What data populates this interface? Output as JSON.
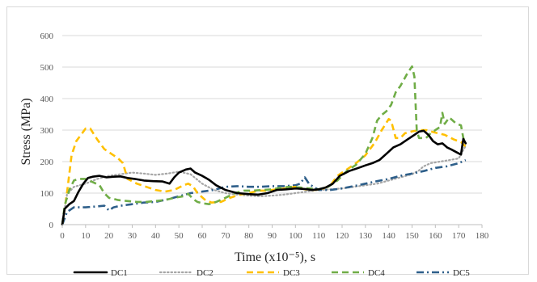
{
  "chart_data": {
    "type": "line",
    "xlabel": "Time (x10⁻⁵), s",
    "ylabel": "Stress (MPa)",
    "xlim": [
      0,
      180
    ],
    "ylim": [
      0,
      600
    ],
    "xticks": [
      "0",
      "10",
      "20",
      "30",
      "40",
      "50",
      "60",
      "70",
      "80",
      "90",
      "100",
      "110",
      "120",
      "130",
      "140",
      "150",
      "160",
      "170",
      "180"
    ],
    "yticks": [
      "0",
      "100",
      "200",
      "300",
      "400",
      "500",
      "600"
    ],
    "grid": "horizontal",
    "legend": "bottom",
    "series": [
      {
        "name": "DC1",
        "color": "#000000",
        "dash": "solid",
        "points": [
          [
            0,
            0
          ],
          [
            1,
            50
          ],
          [
            3,
            65
          ],
          [
            5,
            75
          ],
          [
            7,
            105
          ],
          [
            9,
            130
          ],
          [
            11,
            148
          ],
          [
            13,
            152
          ],
          [
            16,
            155
          ],
          [
            19,
            150
          ],
          [
            22,
            152
          ],
          [
            25,
            153
          ],
          [
            28,
            148
          ],
          [
            31,
            145
          ],
          [
            35,
            140
          ],
          [
            39,
            138
          ],
          [
            43,
            137
          ],
          [
            46,
            130
          ],
          [
            48,
            150
          ],
          [
            50,
            165
          ],
          [
            53,
            175
          ],
          [
            55,
            178
          ],
          [
            57,
            165
          ],
          [
            60,
            155
          ],
          [
            63,
            142
          ],
          [
            66,
            125
          ],
          [
            70,
            110
          ],
          [
            75,
            100
          ],
          [
            80,
            97
          ],
          [
            84,
            95
          ],
          [
            88,
            100
          ],
          [
            92,
            110
          ],
          [
            96,
            112
          ],
          [
            100,
            115
          ],
          [
            104,
            113
          ],
          [
            107,
            110
          ],
          [
            110,
            112
          ],
          [
            113,
            118
          ],
          [
            116,
            130
          ],
          [
            119,
            155
          ],
          [
            123,
            170
          ],
          [
            127,
            180
          ],
          [
            130,
            188
          ],
          [
            133,
            195
          ],
          [
            136,
            205
          ],
          [
            139,
            225
          ],
          [
            142,
            245
          ],
          [
            145,
            255
          ],
          [
            148,
            270
          ],
          [
            151,
            285
          ],
          [
            153,
            295
          ],
          [
            155,
            298
          ],
          [
            157,
            285
          ],
          [
            159,
            265
          ],
          [
            161,
            255
          ],
          [
            163,
            258
          ],
          [
            165,
            245
          ],
          [
            167,
            238
          ],
          [
            169,
            230
          ],
          [
            171,
            222
          ],
          [
            172,
            272
          ],
          [
            173,
            258
          ]
        ]
      },
      {
        "name": "DC2",
        "color": "#a6a6a6",
        "dash": "dotted",
        "points": [
          [
            0,
            0
          ],
          [
            2,
            95
          ],
          [
            5,
            120
          ],
          [
            10,
            130
          ],
          [
            15,
            145
          ],
          [
            20,
            155
          ],
          [
            25,
            160
          ],
          [
            30,
            165
          ],
          [
            35,
            162
          ],
          [
            40,
            158
          ],
          [
            45,
            162
          ],
          [
            50,
            168
          ],
          [
            55,
            160
          ],
          [
            60,
            130
          ],
          [
            65,
            110
          ],
          [
            70,
            100
          ],
          [
            75,
            95
          ],
          [
            80,
            92
          ],
          [
            85,
            90
          ],
          [
            90,
            92
          ],
          [
            95,
            95
          ],
          [
            100,
            100
          ],
          [
            105,
            105
          ],
          [
            110,
            110
          ],
          [
            115,
            112
          ],
          [
            120,
            115
          ],
          [
            125,
            120
          ],
          [
            130,
            125
          ],
          [
            135,
            130
          ],
          [
            140,
            140
          ],
          [
            145,
            150
          ],
          [
            150,
            160
          ],
          [
            153,
            172
          ],
          [
            155,
            185
          ],
          [
            158,
            195
          ],
          [
            162,
            200
          ],
          [
            166,
            205
          ],
          [
            170,
            210
          ],
          [
            173,
            250
          ]
        ]
      },
      {
        "name": "DC3",
        "color": "#ffc000",
        "dash": "dashed",
        "points": [
          [
            0,
            0
          ],
          [
            2,
            100
          ],
          [
            4,
            220
          ],
          [
            6,
            265
          ],
          [
            8,
            285
          ],
          [
            10,
            305
          ],
          [
            12,
            305
          ],
          [
            15,
            270
          ],
          [
            18,
            240
          ],
          [
            21,
            225
          ],
          [
            24,
            210
          ],
          [
            26,
            195
          ],
          [
            28,
            145
          ],
          [
            32,
            130
          ],
          [
            36,
            120
          ],
          [
            40,
            110
          ],
          [
            44,
            105
          ],
          [
            48,
            110
          ],
          [
            52,
            125
          ],
          [
            54,
            130
          ],
          [
            56,
            122
          ],
          [
            58,
            100
          ],
          [
            61,
            80
          ],
          [
            64,
            70
          ],
          [
            68,
            72
          ],
          [
            72,
            85
          ],
          [
            76,
            95
          ],
          [
            80,
            100
          ],
          [
            84,
            108
          ],
          [
            88,
            108
          ],
          [
            92,
            112
          ],
          [
            96,
            115
          ],
          [
            100,
            120
          ],
          [
            104,
            112
          ],
          [
            108,
            110
          ],
          [
            112,
            115
          ],
          [
            115,
            125
          ],
          [
            118,
            155
          ],
          [
            122,
            175
          ],
          [
            126,
            195
          ],
          [
            130,
            220
          ],
          [
            134,
            260
          ],
          [
            137,
            300
          ],
          [
            140,
            335
          ],
          [
            141,
            330
          ],
          [
            143,
            275
          ],
          [
            145,
            275
          ],
          [
            147,
            290
          ],
          [
            150,
            296
          ],
          [
            153,
            300
          ],
          [
            156,
            300
          ],
          [
            160,
            292
          ],
          [
            164,
            285
          ],
          [
            168,
            270
          ],
          [
            171,
            262
          ],
          [
            173,
            248
          ]
        ]
      },
      {
        "name": "DC4",
        "color": "#70ad47",
        "dash": "dashed",
        "points": [
          [
            0,
            0
          ],
          [
            1,
            60
          ],
          [
            3,
            110
          ],
          [
            5,
            140
          ],
          [
            7,
            145
          ],
          [
            10,
            145
          ],
          [
            13,
            135
          ],
          [
            16,
            125
          ],
          [
            18,
            100
          ],
          [
            20,
            85
          ],
          [
            24,
            78
          ],
          [
            28,
            75
          ],
          [
            32,
            72
          ],
          [
            36,
            72
          ],
          [
            40,
            75
          ],
          [
            44,
            78
          ],
          [
            48,
            85
          ],
          [
            52,
            90
          ],
          [
            54,
            98
          ],
          [
            56,
            82
          ],
          [
            58,
            72
          ],
          [
            60,
            68
          ],
          [
            63,
            65
          ],
          [
            66,
            72
          ],
          [
            70,
            85
          ],
          [
            74,
            100
          ],
          [
            78,
            108
          ],
          [
            82,
            108
          ],
          [
            86,
            110
          ],
          [
            90,
            112
          ],
          [
            94,
            118
          ],
          [
            98,
            120
          ],
          [
            102,
            118
          ],
          [
            106,
            115
          ],
          [
            110,
            112
          ],
          [
            114,
            120
          ],
          [
            118,
            140
          ],
          [
            122,
            170
          ],
          [
            126,
            190
          ],
          [
            130,
            225
          ],
          [
            133,
            275
          ],
          [
            135,
            330
          ],
          [
            137,
            348
          ],
          [
            139,
            360
          ],
          [
            141,
            380
          ],
          [
            143,
            420
          ],
          [
            145,
            440
          ],
          [
            148,
            480
          ],
          [
            150,
            502
          ],
          [
            151,
            470
          ],
          [
            152,
            300
          ],
          [
            153,
            275
          ],
          [
            156,
            275
          ],
          [
            158,
            290
          ],
          [
            160,
            300
          ],
          [
            162,
            310
          ],
          [
            163,
            355
          ],
          [
            164,
            320
          ],
          [
            166,
            340
          ],
          [
            169,
            320
          ],
          [
            171,
            315
          ],
          [
            172,
            275
          ],
          [
            173,
            258
          ]
        ]
      },
      {
        "name": "DC5",
        "color": "#2e5f8a",
        "dash": "dashdot",
        "points": [
          [
            0,
            0
          ],
          [
            2,
            40
          ],
          [
            5,
            55
          ],
          [
            10,
            55
          ],
          [
            15,
            58
          ],
          [
            18,
            60
          ],
          [
            20,
            45
          ],
          [
            22,
            55
          ],
          [
            25,
            60
          ],
          [
            30,
            65
          ],
          [
            35,
            70
          ],
          [
            40,
            72
          ],
          [
            45,
            80
          ],
          [
            50,
            90
          ],
          [
            55,
            100
          ],
          [
            60,
            105
          ],
          [
            65,
            110
          ],
          [
            70,
            120
          ],
          [
            75,
            122
          ],
          [
            80,
            120
          ],
          [
            85,
            120
          ],
          [
            90,
            122
          ],
          [
            95,
            122
          ],
          [
            100,
            125
          ],
          [
            102,
            130
          ],
          [
            104,
            150
          ],
          [
            106,
            128
          ],
          [
            110,
            110
          ],
          [
            115,
            110
          ],
          [
            120,
            115
          ],
          [
            125,
            122
          ],
          [
            130,
            130
          ],
          [
            135,
            138
          ],
          [
            140,
            145
          ],
          [
            145,
            155
          ],
          [
            150,
            162
          ],
          [
            155,
            170
          ],
          [
            160,
            180
          ],
          [
            165,
            185
          ],
          [
            170,
            195
          ],
          [
            173,
            205
          ]
        ]
      }
    ]
  }
}
